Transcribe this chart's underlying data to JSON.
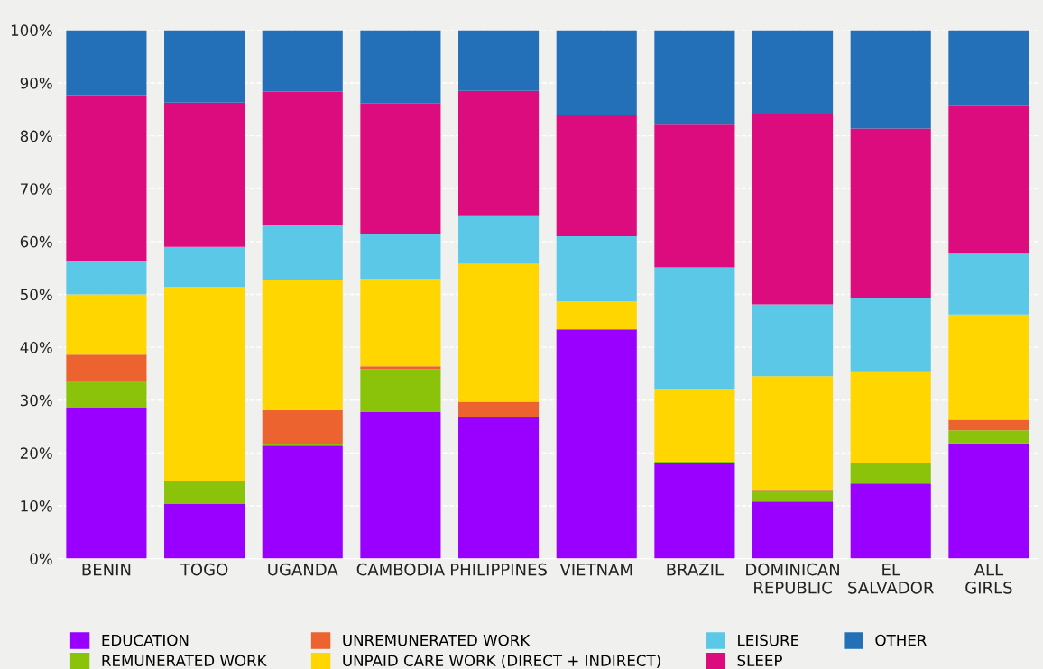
{
  "chart_data": {
    "type": "bar",
    "stacked": true,
    "categories": [
      "BENIN",
      "TOGO",
      "UGANDA",
      "CAMBODIA",
      "PHILIPPINES",
      "VIETNAM",
      "BRAZIL",
      "DOMINICAN\nREPUBLIC",
      "EL\nSALVADOR",
      "ALL\nGIRLS"
    ],
    "series": [
      {
        "name": "EDUCATION",
        "color": "#9900ff",
        "values": [
          28.5,
          10.4,
          21.4,
          27.8,
          26.7,
          43.4,
          18.2,
          10.8,
          14.2,
          21.8
        ]
      },
      {
        "name": "REMUNERATED WORK",
        "color": "#8bc30a",
        "values": [
          4.9,
          4.2,
          0.3,
          8.1,
          0.2,
          0,
          0.2,
          2.0,
          3.8,
          2.5
        ]
      },
      {
        "name": "UNREMUNERATED WORK",
        "color": "#ec6330",
        "values": [
          5.2,
          0,
          6.4,
          0.5,
          2.8,
          0,
          0,
          0.3,
          0,
          2.0
        ]
      },
      {
        "name": "UNPAID CARE WORK (DIRECT + INDIRECT)",
        "color": "#ffd600",
        "values": [
          11.4,
          36.8,
          24.7,
          16.6,
          26.1,
          5.3,
          13.6,
          21.4,
          17.3,
          19.9
        ]
      },
      {
        "name": "LEISURE",
        "color": "#5bc8e7",
        "values": [
          6.4,
          7.6,
          10.3,
          8.5,
          9.0,
          12.3,
          23.1,
          13.6,
          14.1,
          11.5
        ]
      },
      {
        "name": "SLEEP",
        "color": "#dd0c7e",
        "values": [
          31.3,
          27.3,
          25.3,
          24.6,
          23.7,
          22.9,
          27.0,
          36.1,
          32.0,
          27.9
        ]
      },
      {
        "name": "OTHER",
        "color": "#2470b8",
        "values": [
          12.3,
          13.7,
          11.6,
          13.9,
          11.5,
          16.1,
          17.9,
          15.8,
          18.6,
          14.4
        ]
      }
    ],
    "ylim": [
      0,
      100
    ],
    "yticks": [
      {
        "value": 0,
        "label": "0%"
      },
      {
        "value": 10,
        "label": "10%"
      },
      {
        "value": 20,
        "label": "20%"
      },
      {
        "value": 30,
        "label": "30%"
      },
      {
        "value": 40,
        "label": "40%"
      },
      {
        "value": 50,
        "label": "50%"
      },
      {
        "value": 60,
        "label": "60%"
      },
      {
        "value": 70,
        "label": "70%"
      },
      {
        "value": 80,
        "label": "80%"
      },
      {
        "value": 90,
        "label": "90%"
      },
      {
        "value": 100,
        "label": "100%"
      }
    ],
    "grid": "y",
    "legend": "bottom"
  }
}
